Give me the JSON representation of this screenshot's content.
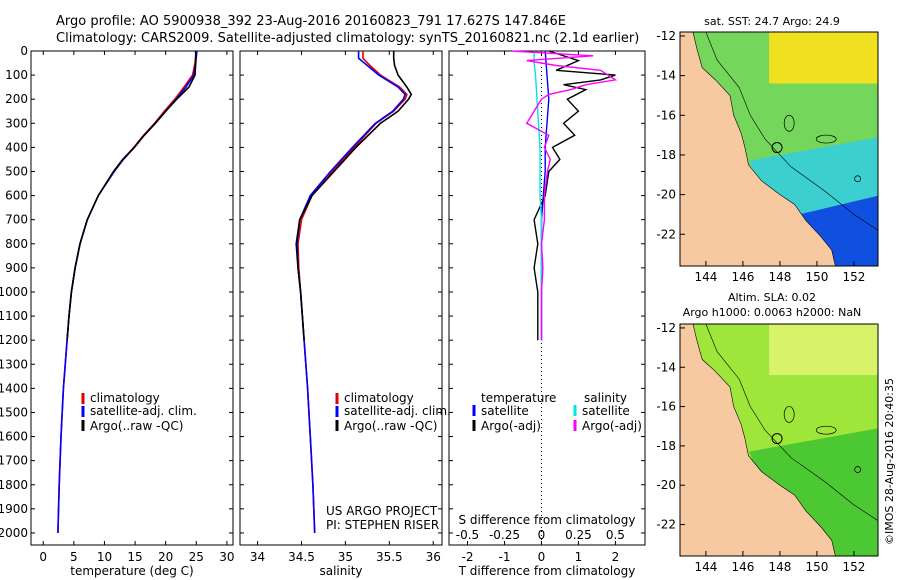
{
  "header": {
    "title_line1": "Argo profile: AO 5900938_392 23-Aug-2016 20160823_791 17.627S 147.846E",
    "title_line2": "Climatology: CARS2009. Satellite-adjusted climatology: synTS_20160821.nc (2.1d earlier)"
  },
  "colors": {
    "climatology": "#e00000",
    "satellite": "#0000ff",
    "argo": "#000000",
    "sal_satellite": "#00e5e5",
    "sal_argo": "#ff00ff",
    "land": "#f7c9a0"
  },
  "depth_axis": {
    "range": [
      0,
      2050
    ],
    "ticks": [
      0,
      100,
      200,
      300,
      400,
      500,
      600,
      700,
      800,
      900,
      1000,
      1100,
      1200,
      1300,
      1400,
      1500,
      1600,
      1700,
      1800,
      1900,
      2000
    ]
  },
  "legend_temperature": {
    "items": [
      "climatology",
      "satellite-adj. clim.",
      "Argo(..raw -QC)"
    ]
  },
  "legend_salinity": {
    "items": [
      "climatology",
      "satellite-adj. clim.",
      "Argo(..raw -QC)"
    ]
  },
  "legend_difference": {
    "temp_header": "temperature",
    "sal_header": "salinity",
    "temp_items": [
      "satellite",
      "Argo(-adj)"
    ],
    "sal_items": [
      "satellite",
      "Argo(-adj)"
    ]
  },
  "credits": {
    "project": "US ARGO PROJECT",
    "pi": "PI: STEPHEN RISER"
  },
  "maps": {
    "sst_title": "sat. SST: 24.7  Argo: 24.9",
    "sla_title1": "Altim. SLA: 0.02",
    "sla_title2": "Argo h1000: 0.0063 h2000: NaN",
    "lat_ticks": [
      "-12",
      "-14",
      "-16",
      "-18",
      "-20",
      "-22"
    ],
    "lon_ticks": [
      "144",
      "146",
      "148",
      "150",
      "152"
    ],
    "lon_values": [
      144,
      146,
      148,
      150,
      152
    ],
    "lat_values": [
      -12,
      -14,
      -16,
      -18,
      -20,
      -22
    ],
    "timestamp": "©IMOS 28-Aug-2016 20:40:35"
  },
  "chart_data": [
    {
      "type": "line",
      "name": "temperature",
      "xlabel": "temperature (deg C)",
      "ylabel": "",
      "xlim": [
        -2,
        31
      ],
      "ylim": [
        2050,
        0
      ],
      "xticks": [
        0,
        5,
        10,
        15,
        20,
        25,
        30
      ],
      "series": [
        {
          "name": "climatology",
          "depth": [
            0,
            50,
            100,
            150,
            200,
            250,
            300,
            350,
            400,
            450,
            500,
            600,
            700,
            800,
            900,
            1000,
            1100,
            1200,
            1400,
            1600,
            1800,
            2000
          ],
          "values": [
            25.0,
            24.8,
            24.4,
            23.0,
            21.5,
            19.8,
            18.2,
            16.4,
            14.8,
            13.0,
            11.5,
            9.0,
            7.2,
            6.0,
            5.2,
            4.6,
            4.2,
            3.9,
            3.3,
            2.9,
            2.6,
            2.4
          ]
        },
        {
          "name": "satellite-adj. clim.",
          "depth": [
            0,
            50,
            100,
            150,
            200,
            250,
            300,
            350,
            400,
            450,
            500,
            600,
            700,
            800,
            900,
            1000,
            1100,
            1200,
            1400,
            1600,
            1800,
            2000
          ],
          "values": [
            25.1,
            24.9,
            24.6,
            23.3,
            21.7,
            20.0,
            18.3,
            16.5,
            14.9,
            13.1,
            11.6,
            9.0,
            7.2,
            6.0,
            5.2,
            4.6,
            4.2,
            3.9,
            3.3,
            2.9,
            2.6,
            2.4
          ]
        },
        {
          "name": "Argo(..raw -QC)",
          "depth": [
            0,
            50,
            100,
            150,
            200,
            250,
            300,
            350,
            400,
            450,
            500,
            600,
            700,
            800,
            900,
            1000,
            1100,
            1200
          ],
          "values": [
            24.9,
            24.9,
            24.8,
            23.8,
            21.8,
            20.0,
            18.3,
            16.5,
            14.9,
            13.0,
            11.5,
            9.0,
            7.2,
            6.0,
            5.2,
            4.6,
            4.2,
            3.9
          ]
        }
      ]
    },
    {
      "type": "line",
      "name": "salinity",
      "xlabel": "salinity",
      "ylabel": "",
      "xlim": [
        33.8,
        36.1
      ],
      "ylim": [
        2050,
        0
      ],
      "xticks": [
        34,
        34.5,
        35,
        35.5,
        36
      ],
      "series": [
        {
          "name": "climatology",
          "depth": [
            0,
            30,
            60,
            100,
            150,
            180,
            200,
            250,
            300,
            400,
            500,
            600,
            700,
            800,
            900,
            1000,
            1200,
            1400,
            1600,
            1800,
            2000
          ],
          "values": [
            35.2,
            35.2,
            35.28,
            35.4,
            35.62,
            35.7,
            35.68,
            35.55,
            35.35,
            35.1,
            34.85,
            34.62,
            34.5,
            34.46,
            34.47,
            34.49,
            34.53,
            34.57,
            34.6,
            34.63,
            34.65
          ]
        },
        {
          "name": "satellite-adj. clim.",
          "depth": [
            0,
            30,
            60,
            100,
            150,
            180,
            200,
            250,
            300,
            400,
            500,
            600,
            700,
            800,
            900,
            1000,
            1200,
            1400,
            1600,
            1800,
            2000
          ],
          "values": [
            35.15,
            35.15,
            35.25,
            35.38,
            35.6,
            35.68,
            35.66,
            35.54,
            35.34,
            35.08,
            34.83,
            34.6,
            34.48,
            34.45,
            34.46,
            34.49,
            34.53,
            34.57,
            34.6,
            34.63,
            34.65
          ]
        },
        {
          "name": "Argo(..raw -QC)",
          "depth": [
            0,
            30,
            60,
            100,
            150,
            180,
            200,
            250,
            300,
            400,
            500,
            600,
            700,
            800,
            900,
            1000,
            1100,
            1200
          ],
          "values": [
            35.55,
            35.55,
            35.56,
            35.6,
            35.7,
            35.75,
            35.72,
            35.6,
            35.4,
            35.12,
            34.87,
            34.62,
            34.48,
            34.44,
            34.46,
            34.49,
            34.51,
            34.53
          ]
        }
      ]
    },
    {
      "type": "line",
      "name": "difference",
      "xlabel_top": "S difference from climatology",
      "xlabel": "T difference from climatology",
      "xlim": [
        -2.5,
        2.8
      ],
      "ylim": [
        2050,
        0
      ],
      "xticks": [
        -2,
        -1,
        0,
        1,
        2
      ],
      "sticks": [
        -0.5,
        -0.25,
        0,
        0.25,
        0.5
      ],
      "stick_labels": [
        "-0.5",
        "-0.25",
        "0",
        "0.25",
        "0.5"
      ],
      "series": [
        {
          "name": "temperature satellite",
          "depth": [
            0,
            100,
            200,
            300,
            400,
            500,
            600,
            700,
            800,
            900,
            1000,
            1100,
            1200
          ],
          "values": [
            0.1,
            0.15,
            0.2,
            0.15,
            0.1,
            0.1,
            0.05,
            0.0,
            0.0,
            0.0,
            0.0,
            0.0,
            0.0
          ]
        },
        {
          "name": "temperature Argo(-adj)",
          "depth": [
            0,
            40,
            80,
            100,
            120,
            140,
            160,
            200,
            250,
            300,
            350,
            400,
            450,
            500,
            600,
            700,
            800,
            900,
            1000,
            1100,
            1200
          ],
          "values": [
            0.2,
            1.0,
            0.4,
            2.0,
            1.6,
            0.6,
            1.2,
            0.7,
            1.0,
            0.6,
            0.9,
            0.3,
            0.5,
            0.2,
            0.1,
            -0.2,
            -0.1,
            -0.2,
            -0.1,
            -0.1,
            -0.1
          ]
        },
        {
          "name": "salinity satellite",
          "depth": [
            0,
            50,
            100,
            200,
            300,
            400,
            500,
            600,
            700,
            800,
            900,
            1000,
            1100,
            1200
          ],
          "values": [
            -0.05,
            -0.05,
            -0.04,
            -0.03,
            -0.02,
            -0.01,
            -0.01,
            -0.01,
            0,
            0,
            0,
            0,
            0,
            0
          ]
        },
        {
          "name": "salinity Argo(-adj)",
          "depth": [
            0,
            20,
            40,
            60,
            80,
            100,
            120,
            140,
            160,
            180,
            200,
            250,
            300,
            350,
            400,
            450,
            500,
            600,
            700,
            800,
            900,
            1000,
            1100,
            1200
          ],
          "values": [
            -0.2,
            0.35,
            -0.1,
            0.1,
            0.4,
            0.45,
            0.5,
            0.3,
            0.2,
            0.05,
            0.0,
            -0.05,
            -0.1,
            0.05,
            0.02,
            0.06,
            0.04,
            0.02,
            0.02,
            0.0,
            0.01,
            0.0,
            0.0,
            0.0
          ]
        }
      ]
    }
  ]
}
